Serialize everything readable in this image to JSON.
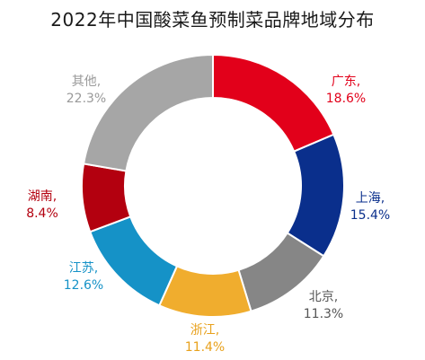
{
  "chart_data": {
    "type": "pie",
    "title": "2022年中国酸菜鱼预制菜品牌地域分布",
    "donut": true,
    "slices": [
      {
        "name": "广东",
        "value": 18.6,
        "value_label": "18.6%",
        "color": "#e2001a"
      },
      {
        "name": "上海",
        "value": 15.4,
        "value_label": "15.4%",
        "color": "#0a2f8c"
      },
      {
        "name": "北京",
        "value": 11.3,
        "value_label": "11.3%",
        "color": "#868686"
      },
      {
        "name": "浙江",
        "value": 11.4,
        "value_label": "11.4%",
        "color": "#f0ad2e"
      },
      {
        "name": "江苏",
        "value": 12.6,
        "value_label": "12.6%",
        "color": "#1592c7"
      },
      {
        "name": "湖南",
        "value": 8.4,
        "value_label": "8.4%",
        "color": "#b3000f"
      },
      {
        "name": "其他",
        "value": 22.3,
        "value_label": "22.3%",
        "color": "#a6a6a6"
      }
    ],
    "label_colors": [
      "#e2001a",
      "#0a2f8c",
      "#555555",
      "#e8a11c",
      "#1592c7",
      "#b3000f",
      "#9a9a9a"
    ],
    "start_angle": "12 o'clock",
    "direction": "clockwise",
    "legend": "none"
  }
}
